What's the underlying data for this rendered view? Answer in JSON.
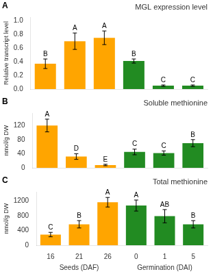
{
  "chart_data": [
    {
      "type": "bar",
      "label": "A",
      "title": "MGL expression level",
      "ylabel": "Relative transcript level",
      "categories": [
        null,
        null,
        null,
        null,
        null,
        null
      ],
      "values": [
        0.37,
        0.7,
        0.75,
        0.41,
        0.05,
        0.05
      ],
      "errors": [
        0.07,
        0.12,
        0.1,
        0.03,
        0.01,
        0.01
      ],
      "annotations": [
        "B",
        "A",
        "A",
        "B",
        "C",
        "C"
      ],
      "colors": [
        "#FFA500",
        "#FFA500",
        "#FFA500",
        "#228B22",
        "#228B22",
        "#228B22"
      ],
      "ylim": [
        0,
        1.05
      ],
      "yticks": [
        {
          "value": 0.0,
          "label": "0.0"
        },
        0.2,
        0.4,
        0.6,
        0.8,
        {
          "value": 1.0,
          "label": "1.0"
        }
      ],
      "grid": false,
      "tick_labels": "y"
    },
    {
      "type": "bar",
      "label": "B",
      "title": "Soluble methionine",
      "ylabel": "nmol/g DW",
      "categories": [
        null,
        null,
        null,
        null,
        null,
        null
      ],
      "values": [
        120,
        32,
        8,
        45,
        42,
        70
      ],
      "errors": [
        18,
        8,
        2,
        8,
        6,
        10
      ],
      "annotations": [
        "A",
        "D",
        "E",
        "C",
        "C",
        "B"
      ],
      "colors": [
        "#FFA500",
        "#FFA500",
        "#FFA500",
        "#228B22",
        "#228B22",
        "#228B22"
      ],
      "ylim": [
        0,
        155
      ],
      "yticks": [
        0,
        40,
        80,
        120
      ],
      "grid": false,
      "tick_labels": "y"
    },
    {
      "type": "bar",
      "label": "C",
      "title": "Total methionine",
      "ylabel": "nmol/g DW",
      "categories": [
        "16",
        "21",
        "26",
        "0",
        "1",
        "5"
      ],
      "values": [
        290,
        570,
        1170,
        1080,
        790,
        570
      ],
      "errors": [
        60,
        100,
        130,
        150,
        180,
        100
      ],
      "annotations": [
        "C",
        "B",
        "A",
        "A",
        "AB",
        "B"
      ],
      "colors": [
        "#FFA500",
        "#FFA500",
        "#FFA500",
        "#228B22",
        "#228B22",
        "#228B22"
      ],
      "ylim": [
        0,
        1450
      ],
      "yticks": [
        0,
        400,
        800,
        1200
      ],
      "x_groups": [
        {
          "label": "Seeds (DAF)",
          "categories": [
            "16",
            "21",
            "26"
          ]
        },
        {
          "label": "Germination (DAI)",
          "categories": [
            "0",
            "1",
            "5"
          ]
        }
      ],
      "grid": false
    }
  ]
}
